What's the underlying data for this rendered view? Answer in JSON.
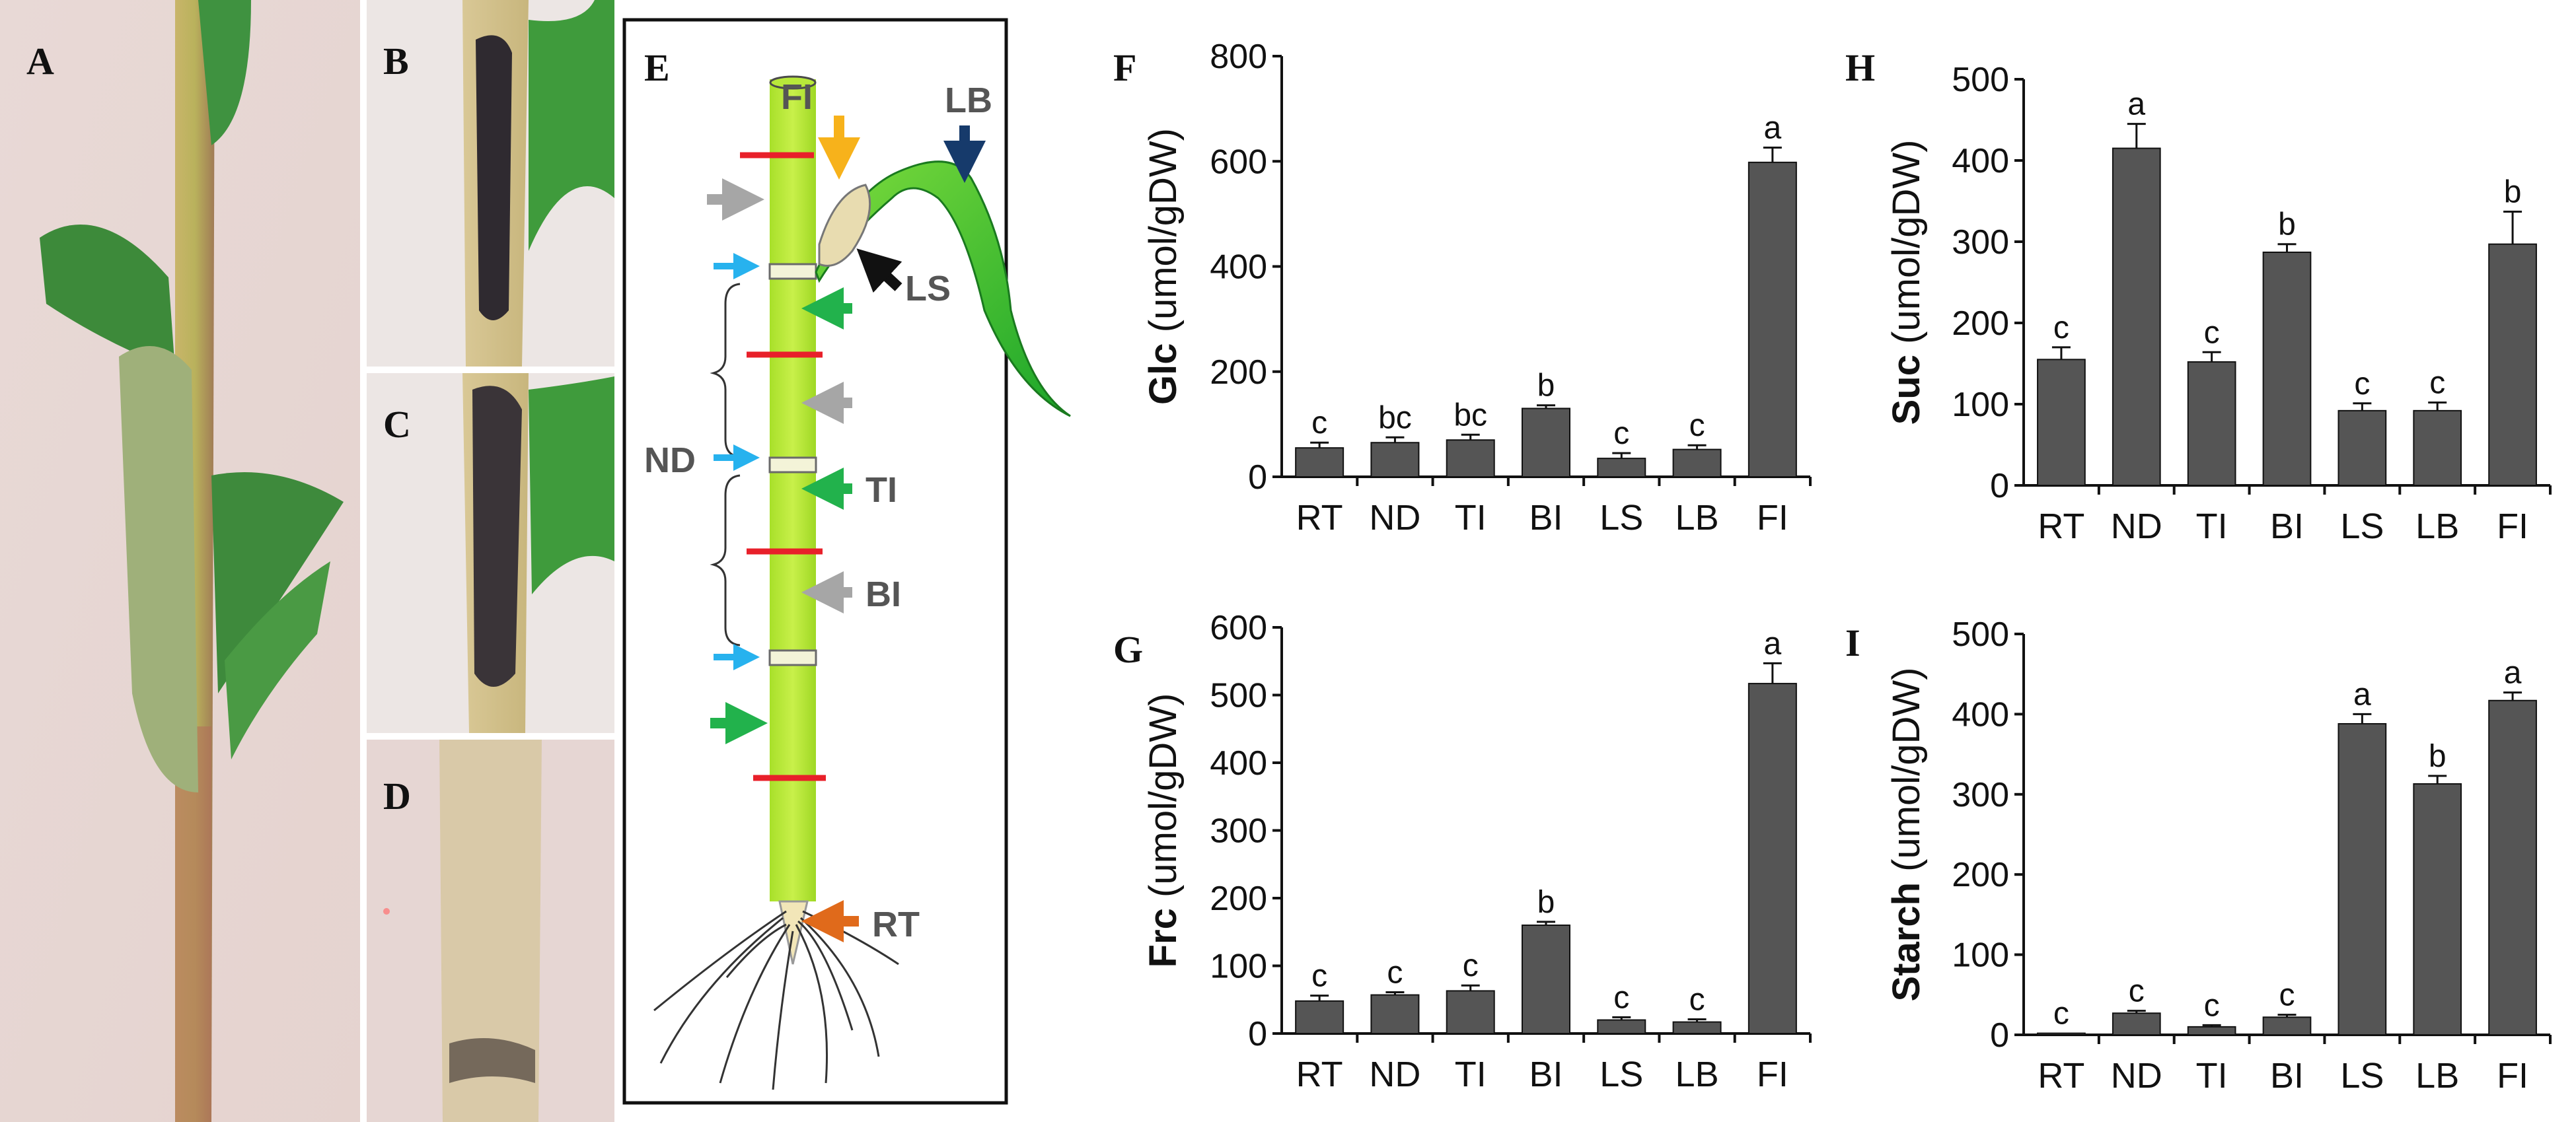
{
  "panels": {
    "A": "A",
    "B": "B",
    "C": "C",
    "D": "D",
    "E": "E",
    "F": "F",
    "G": "G",
    "H": "H",
    "I": "I"
  },
  "diagram": {
    "labels": {
      "FI": "FI",
      "LB": "LB",
      "LS": "LS",
      "ND": "ND",
      "TI": "TI",
      "BI": "BI",
      "RT": "RT"
    },
    "colors": {
      "stem": "#b6ea2a",
      "leaf": "#2fc22f",
      "cut": "#e8202a",
      "fi_arrow": "#f7b21b",
      "lb_arrow": "#163a6b",
      "ls_arrow": "#111111",
      "gray_arrow": "#a6a6a6",
      "blue_arrow": "#27b2ee",
      "green_arrow": "#22b24c",
      "rt_arrow": "#e06a1b"
    }
  },
  "bar_color": "#555555",
  "chart_data": [
    {
      "id": "F",
      "type": "bar",
      "categories": [
        "RT",
        "ND",
        "TI",
        "BI",
        "LS",
        "LB",
        "FI"
      ],
      "values": [
        55,
        65,
        70,
        130,
        35,
        52,
        598
      ],
      "errors": [
        10,
        10,
        10,
        6,
        10,
        8,
        28
      ],
      "significance": [
        "c",
        "bc",
        "bc",
        "b",
        "c",
        "c",
        "a"
      ],
      "ylabel_bold": "Glc",
      "ylabel_rest": " (umol/gDW)",
      "ylim": [
        0,
        800
      ],
      "yticks": [
        0,
        200,
        400,
        600,
        800
      ]
    },
    {
      "id": "G",
      "type": "bar",
      "categories": [
        "RT",
        "ND",
        "TI",
        "BI",
        "LS",
        "LB",
        "FI"
      ],
      "values": [
        48,
        57,
        63,
        160,
        20,
        17,
        517
      ],
      "errors": [
        8,
        4,
        8,
        5,
        4,
        4,
        30
      ],
      "significance": [
        "c",
        "c",
        "c",
        "b",
        "c",
        "c",
        "a"
      ],
      "ylabel_bold": "Frc",
      "ylabel_rest": " (umol/gDW)",
      "ylim": [
        0,
        600
      ],
      "yticks": [
        0,
        100,
        200,
        300,
        400,
        500,
        600
      ]
    },
    {
      "id": "H",
      "type": "bar",
      "categories": [
        "RT",
        "ND",
        "TI",
        "BI",
        "LS",
        "LB",
        "FI"
      ],
      "values": [
        155,
        415,
        152,
        287,
        92,
        92,
        297
      ],
      "errors": [
        15,
        30,
        12,
        10,
        9,
        10,
        40
      ],
      "significance": [
        "c",
        "a",
        "c",
        "b",
        "c",
        "c",
        "b"
      ],
      "ylabel_bold": "Suc",
      "ylabel_rest": " (umol/gDW)",
      "ylim": [
        0,
        500
      ],
      "yticks": [
        0,
        100,
        200,
        300,
        400,
        500
      ]
    },
    {
      "id": "I",
      "type": "bar",
      "categories": [
        "RT",
        "ND",
        "TI",
        "BI",
        "LS",
        "LB",
        "FI"
      ],
      "values": [
        2,
        27,
        10,
        22,
        388,
        313,
        417
      ],
      "errors": [
        0,
        3,
        2,
        3,
        12,
        10,
        10
      ],
      "significance": [
        "c",
        "c",
        "c",
        "c",
        "a",
        "b",
        "a"
      ],
      "ylabel_bold": "Starch",
      "ylabel_rest": " (umol/gDW)",
      "ylim": [
        0,
        500
      ],
      "yticks": [
        0,
        100,
        200,
        300,
        400,
        500
      ]
    }
  ]
}
